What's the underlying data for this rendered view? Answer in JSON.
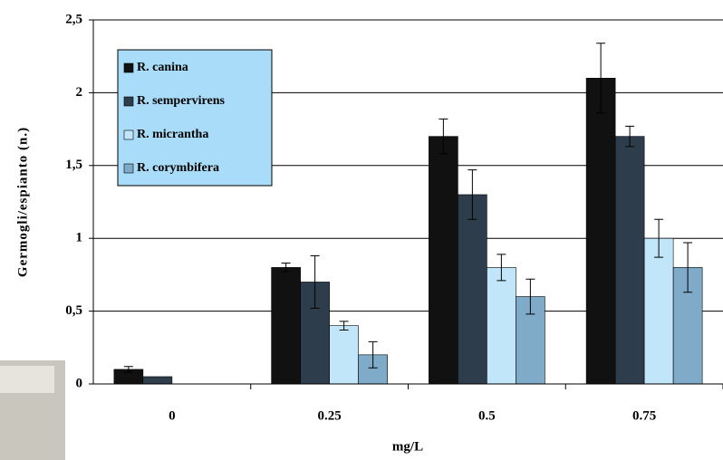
{
  "chart_data": {
    "type": "bar",
    "y_label": "Germogli/espianto (n.)",
    "x_label": "mg/L",
    "categories": [
      "0",
      "0.25",
      "0.5",
      "0.75"
    ],
    "series": [
      {
        "name": "R. canina",
        "color": "#111111",
        "values": [
          0.1,
          0.8,
          1.7,
          2.1
        ],
        "errors": [
          0.02,
          0.03,
          0.12,
          0.24
        ]
      },
      {
        "name": "R. sempervirens",
        "color": "#2e3d4b",
        "values": [
          0.05,
          0.7,
          1.3,
          1.7
        ],
        "errors": [
          null,
          0.18,
          0.17,
          0.07
        ]
      },
      {
        "name": "R. micrantha",
        "color": "#c2e6f9",
        "values": [
          0,
          0.4,
          0.8,
          1.0
        ],
        "errors": [
          null,
          0.03,
          0.09,
          0.13
        ]
      },
      {
        "name": "R. corymbifera",
        "color": "#7fabc9",
        "values": [
          0,
          0.2,
          0.6,
          0.8
        ],
        "errors": [
          null,
          0.09,
          0.12,
          0.17
        ]
      }
    ],
    "ylim": [
      0,
      2.5
    ],
    "yticks": [
      0,
      {
        "value": 0.5,
        "label": "0,5"
      },
      1,
      {
        "value": 1.5,
        "label": "1,5"
      },
      2,
      {
        "value": 2.5,
        "label": "2,5"
      }
    ],
    "grid": true
  }
}
